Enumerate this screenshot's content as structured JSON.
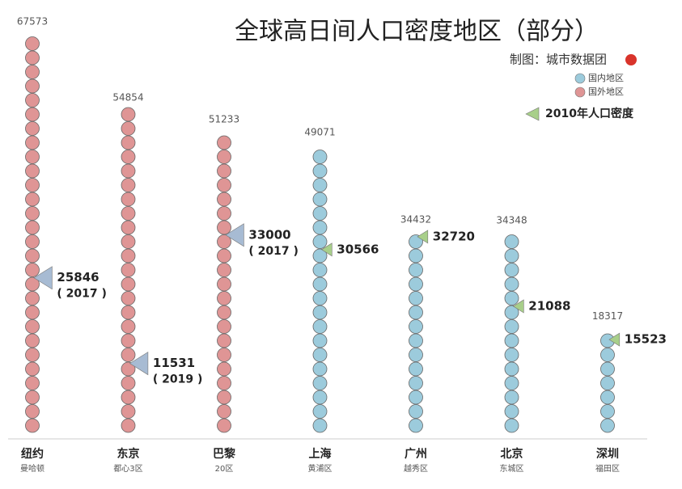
{
  "chart_data": {
    "type": "pictogram-column",
    "title": "全球高日间人口密度地区（部分）",
    "credit": "制图：城市数据团",
    "categories": [
      "纽约",
      "东京",
      "巴黎",
      "上海",
      "广州",
      "北京",
      "深圳"
    ],
    "subcategories": [
      "曼哈顿",
      "都心3区",
      "20区",
      "黄浦区",
      "越秀区",
      "东城区",
      "福田区"
    ],
    "values": [
      67573,
      54854,
      51233,
      49071,
      34432,
      34348,
      18317
    ],
    "region_index": [
      1,
      1,
      1,
      0,
      0,
      0,
      0
    ],
    "legend": [
      {
        "label": "国内地区",
        "color": "#9ccbdc"
      },
      {
        "label": "国外地区",
        "color": "#df9595"
      }
    ],
    "ylim": [
      0,
      70000
    ],
    "markers": {
      "label": "2010年人口密度",
      "legend_color": "#a8cf8a",
      "values": [
        25846,
        11531,
        33000,
        30566,
        32720,
        21088,
        15523
      ],
      "notes": [
        "( 2017 )",
        "( 2019 )",
        "( 2017 )",
        null,
        null,
        null,
        null
      ],
      "colors": [
        "#a7bbd3",
        "#a7bbd3",
        "#a7bbd3",
        "#a8cf8a",
        "#a8cf8a",
        "#a8cf8a",
        "#a8cf8a"
      ]
    }
  }
}
